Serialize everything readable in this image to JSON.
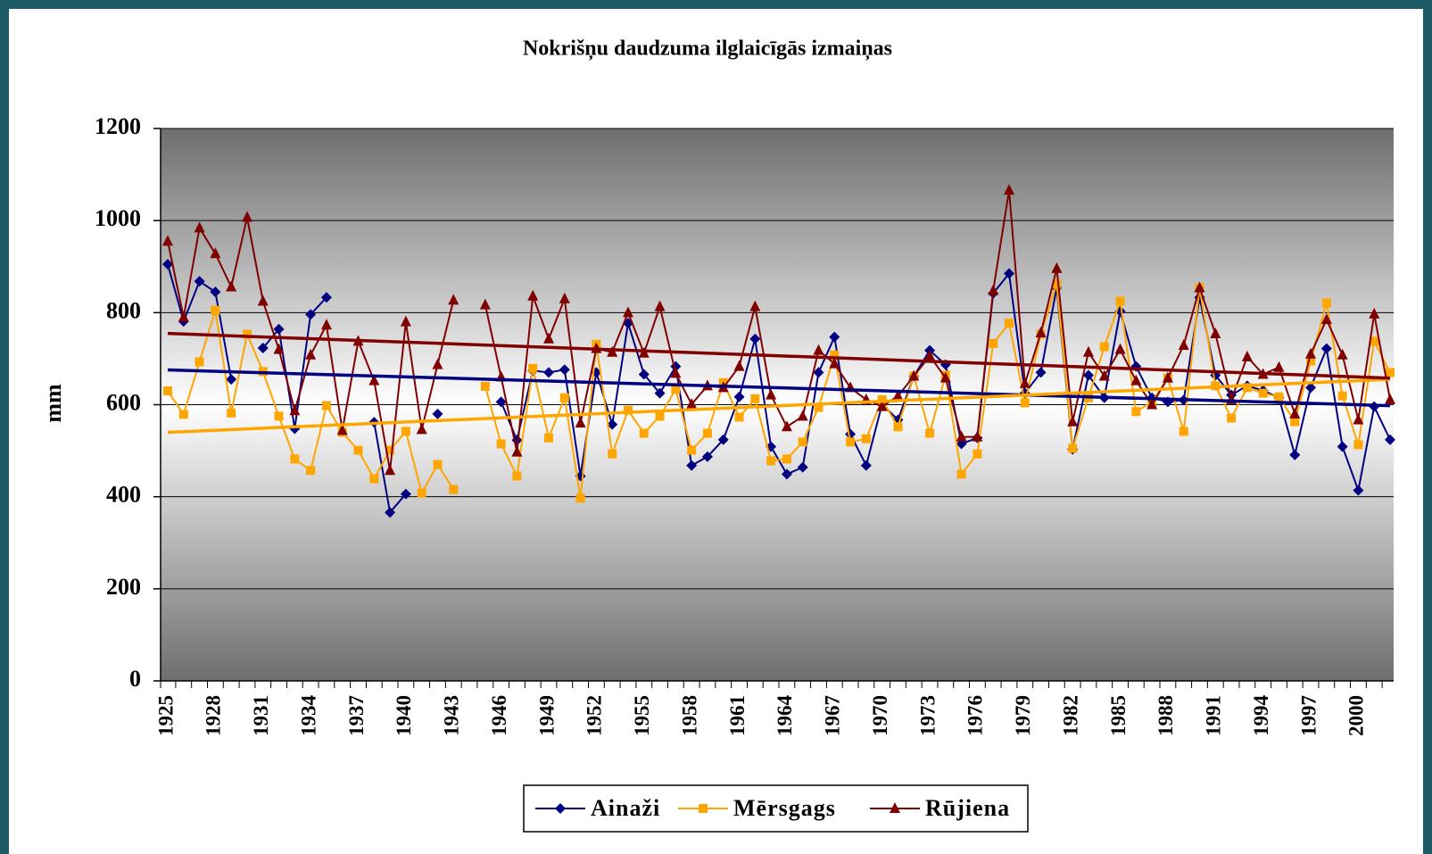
{
  "chart_data": {
    "type": "line",
    "title": "Nokrišņu daudzuma ilglaicīgās izmaiņas",
    "y_label": "mm",
    "ylim": [
      0,
      1200
    ],
    "yticks": [
      0,
      200,
      400,
      600,
      800,
      1000,
      1200
    ],
    "grid": true,
    "trend_lines": true,
    "legend": "bottom",
    "categories": [
      "1925",
      null,
      null,
      "1928",
      null,
      null,
      "1931",
      null,
      null,
      "1934",
      null,
      null,
      "1937",
      null,
      null,
      "1940",
      null,
      null,
      "1943",
      null,
      null,
      "1946",
      null,
      null,
      "1949",
      null,
      null,
      "1952",
      null,
      null,
      "1955",
      null,
      null,
      "1958",
      null,
      null,
      "1961",
      null,
      null,
      "1964",
      null,
      null,
      "1967",
      null,
      null,
      "1970",
      null,
      null,
      "1973",
      null,
      null,
      "1976",
      null,
      null,
      "1979",
      null,
      null,
      "1982",
      null,
      null,
      "1985",
      null,
      null,
      "1988",
      null,
      null,
      "1991",
      null,
      null,
      "1994",
      null,
      null,
      "1997",
      null,
      null,
      "2000",
      null,
      null
    ],
    "series": [
      {
        "name": "Ainaži",
        "color": "#000080",
        "marker": "diamond",
        "values": [
          905,
          781,
          868,
          845,
          655,
          null,
          723,
          764,
          548,
          796,
          833,
          null,
          null,
          562,
          366,
          406,
          null,
          580,
          null,
          null,
          null,
          606,
          523,
          674,
          670,
          676,
          445,
          670,
          557,
          777,
          666,
          625,
          683,
          468,
          487,
          524,
          617,
          743,
          509,
          449,
          464,
          670,
          747,
          536,
          468,
          601,
          567,
          662,
          718,
          687,
          515,
          528,
          842,
          885,
          625,
          670,
          854,
          503,
          664,
          615,
          803,
          683,
          615,
          606,
          610,
          833,
          664,
          621,
          641,
          631,
          615,
          491,
          637,
          722,
          509,
          414,
          596,
          524
        ]
      },
      {
        "name": "Mērsgags",
        "color": "#ffa500",
        "marker": "square",
        "values": [
          630,
          579,
          693,
          805,
          582,
          753,
          672,
          575,
          482,
          457,
          598,
          540,
          501,
          439,
          501,
          542,
          408,
          470,
          416,
          null,
          640,
          515,
          445,
          679,
          528,
          615,
          397,
          731,
          493,
          588,
          538,
          575,
          633,
          501,
          538,
          648,
          573,
          613,
          478,
          482,
          519,
          594,
          708,
          519,
          526,
          611,
          552,
          662,
          538,
          664,
          449,
          493,
          733,
          777,
          604,
          753,
          862,
          505,
          615,
          726,
          825,
          585,
          606,
          658,
          542,
          854,
          641,
          571,
          637,
          625,
          617,
          563,
          695,
          821,
          619,
          513,
          738,
          670
        ]
      },
      {
        "name": "Rūjiena",
        "color": "#800000",
        "marker": "triangle",
        "values": [
          955,
          790,
          984,
          928,
          856,
          1007,
          825,
          720,
          587,
          708,
          773,
          544,
          738,
          652,
          457,
          780,
          546,
          687,
          827,
          null,
          817,
          660,
          497,
          836,
          743,
          830,
          560,
          722,
          714,
          800,
          712,
          813,
          668,
          601,
          641,
          637,
          683,
          813,
          621,
          552,
          575,
          718,
          689,
          637,
          611,
          596,
          619,
          662,
          706,
          658,
          530,
          530,
          848,
          1066,
          646,
          756,
          896,
          563,
          714,
          662,
          720,
          652,
          600,
          658,
          729,
          854,
          754,
          611,
          704,
          666,
          681,
          580,
          710,
          785,
          708,
          567,
          797,
          611
        ]
      }
    ]
  }
}
